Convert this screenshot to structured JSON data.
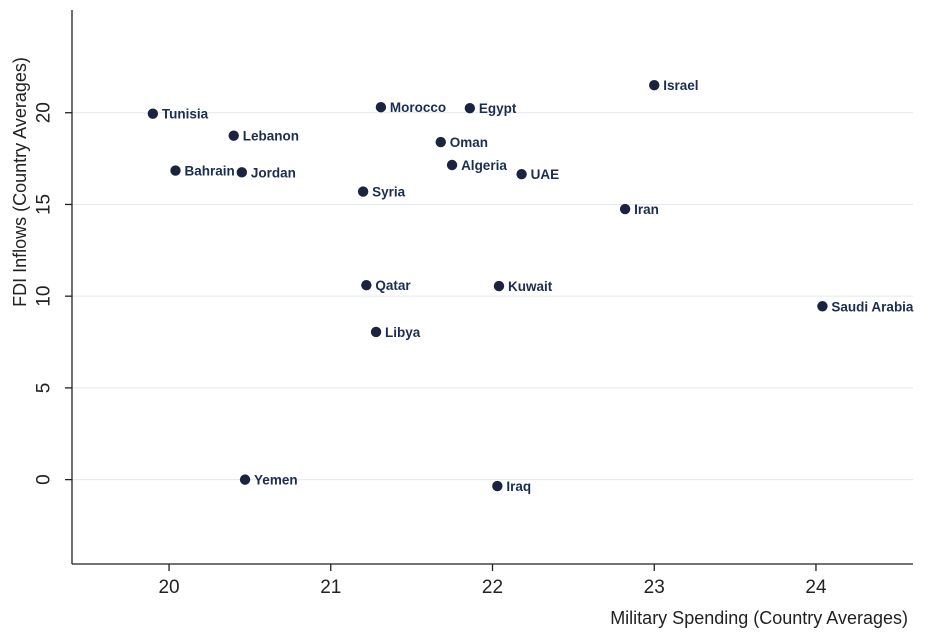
{
  "chart_data": {
    "type": "scatter",
    "title": "",
    "xlabel": "Military Spending (Country Averages)",
    "ylabel": "FDI Inflows (Country Averages)",
    "xlim": [
      19.4,
      24.6
    ],
    "ylim": [
      -4.6,
      25.6
    ],
    "x_ticks": [
      20,
      21,
      22,
      23,
      24
    ],
    "y_ticks": [
      0,
      5,
      10,
      15,
      20
    ],
    "grid": "horizontal",
    "legend": "none",
    "colors": {
      "marker": "#1a2440",
      "label": "#1a2e52",
      "grid": "#e4e8ec",
      "axis": "#222222",
      "background": "#ffffff"
    },
    "points": [
      {
        "label": "Tunisia",
        "x": 19.9,
        "y": 19.95
      },
      {
        "label": "Bahrain",
        "x": 20.04,
        "y": 16.85
      },
      {
        "label": "Lebanon",
        "x": 20.4,
        "y": 18.75
      },
      {
        "label": "Jordan",
        "x": 20.45,
        "y": 16.75
      },
      {
        "label": "Yemen",
        "x": 20.47,
        "y": 0.0
      },
      {
        "label": "Syria",
        "x": 21.2,
        "y": 15.7
      },
      {
        "label": "Qatar",
        "x": 21.22,
        "y": 10.6
      },
      {
        "label": "Libya",
        "x": 21.28,
        "y": 8.05
      },
      {
        "label": "Morocco",
        "x": 21.31,
        "y": 20.3
      },
      {
        "label": "Oman",
        "x": 21.68,
        "y": 18.4
      },
      {
        "label": "Algeria",
        "x": 21.75,
        "y": 17.15
      },
      {
        "label": "Egypt",
        "x": 21.86,
        "y": 20.25
      },
      {
        "label": "Kuwait",
        "x": 22.04,
        "y": 10.55
      },
      {
        "label": "Iraq",
        "x": 22.03,
        "y": -0.35
      },
      {
        "label": "UAE",
        "x": 22.18,
        "y": 16.65
      },
      {
        "label": "Iran",
        "x": 22.82,
        "y": 14.75
      },
      {
        "label": "Israel",
        "x": 23.0,
        "y": 21.5
      },
      {
        "label": "Saudi Arabia",
        "x": 24.04,
        "y": 9.45
      }
    ]
  }
}
